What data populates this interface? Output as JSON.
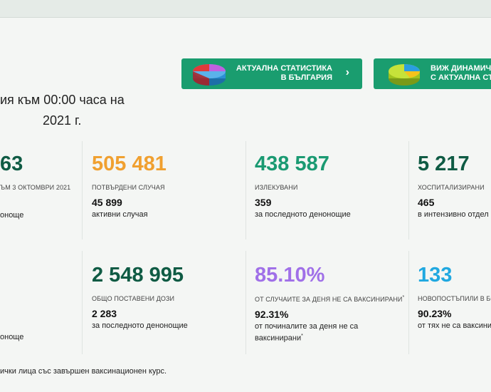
{
  "buttons": {
    "stats": {
      "line1": "Актуална статистика",
      "line2": "в България",
      "chevron": "›",
      "icon": "pie-chart-icon",
      "color": "#1a9d6f"
    },
    "dynamics": {
      "line1": "Виж динамич",
      "line2": "с актуална ст",
      "icon": "pie-chart-icon"
    }
  },
  "heading": {
    "line1": "ия към 00:00 часа на",
    "line2": "2021 г."
  },
  "row1": [
    {
      "value": "63",
      "caption": "ъм 3 октомври 2021",
      "sub": "",
      "desc": "оноще"
    },
    {
      "value": "505 481",
      "caption": "потвърдени случая",
      "sub": "45 899",
      "desc": "активни случая",
      "color": "#f0a030"
    },
    {
      "value": "438 587",
      "caption": "излекувани",
      "sub": "359",
      "desc": "за последното денонощие",
      "color": "#1a9a72"
    },
    {
      "value": "5 217",
      "caption": "хоспитализирани",
      "sub": "465",
      "desc": "в интензивно отдел",
      "color": "#0f5b44"
    }
  ],
  "row2": [
    {
      "value": "",
      "caption": "",
      "sub": "",
      "desc": "оноще"
    },
    {
      "value": "2 548 995",
      "caption": "общо поставени дози",
      "sub": "2 283",
      "desc": "за последното денонощие",
      "color": "#0f5b44"
    },
    {
      "value": "85.10%",
      "caption": "от случаите за деня не са ваксинирани",
      "sub": "92.31%",
      "desc": "от починалите за деня не са ваксинирани",
      "color": "#a070e8"
    },
    {
      "value": "133",
      "caption": "новопостъпили в бо",
      "sub": "90.23%",
      "desc": "от тях не са ваксини",
      "color": "#20a8e0"
    }
  ],
  "footnote": "ички лица със завършен ваксинационен курс."
}
